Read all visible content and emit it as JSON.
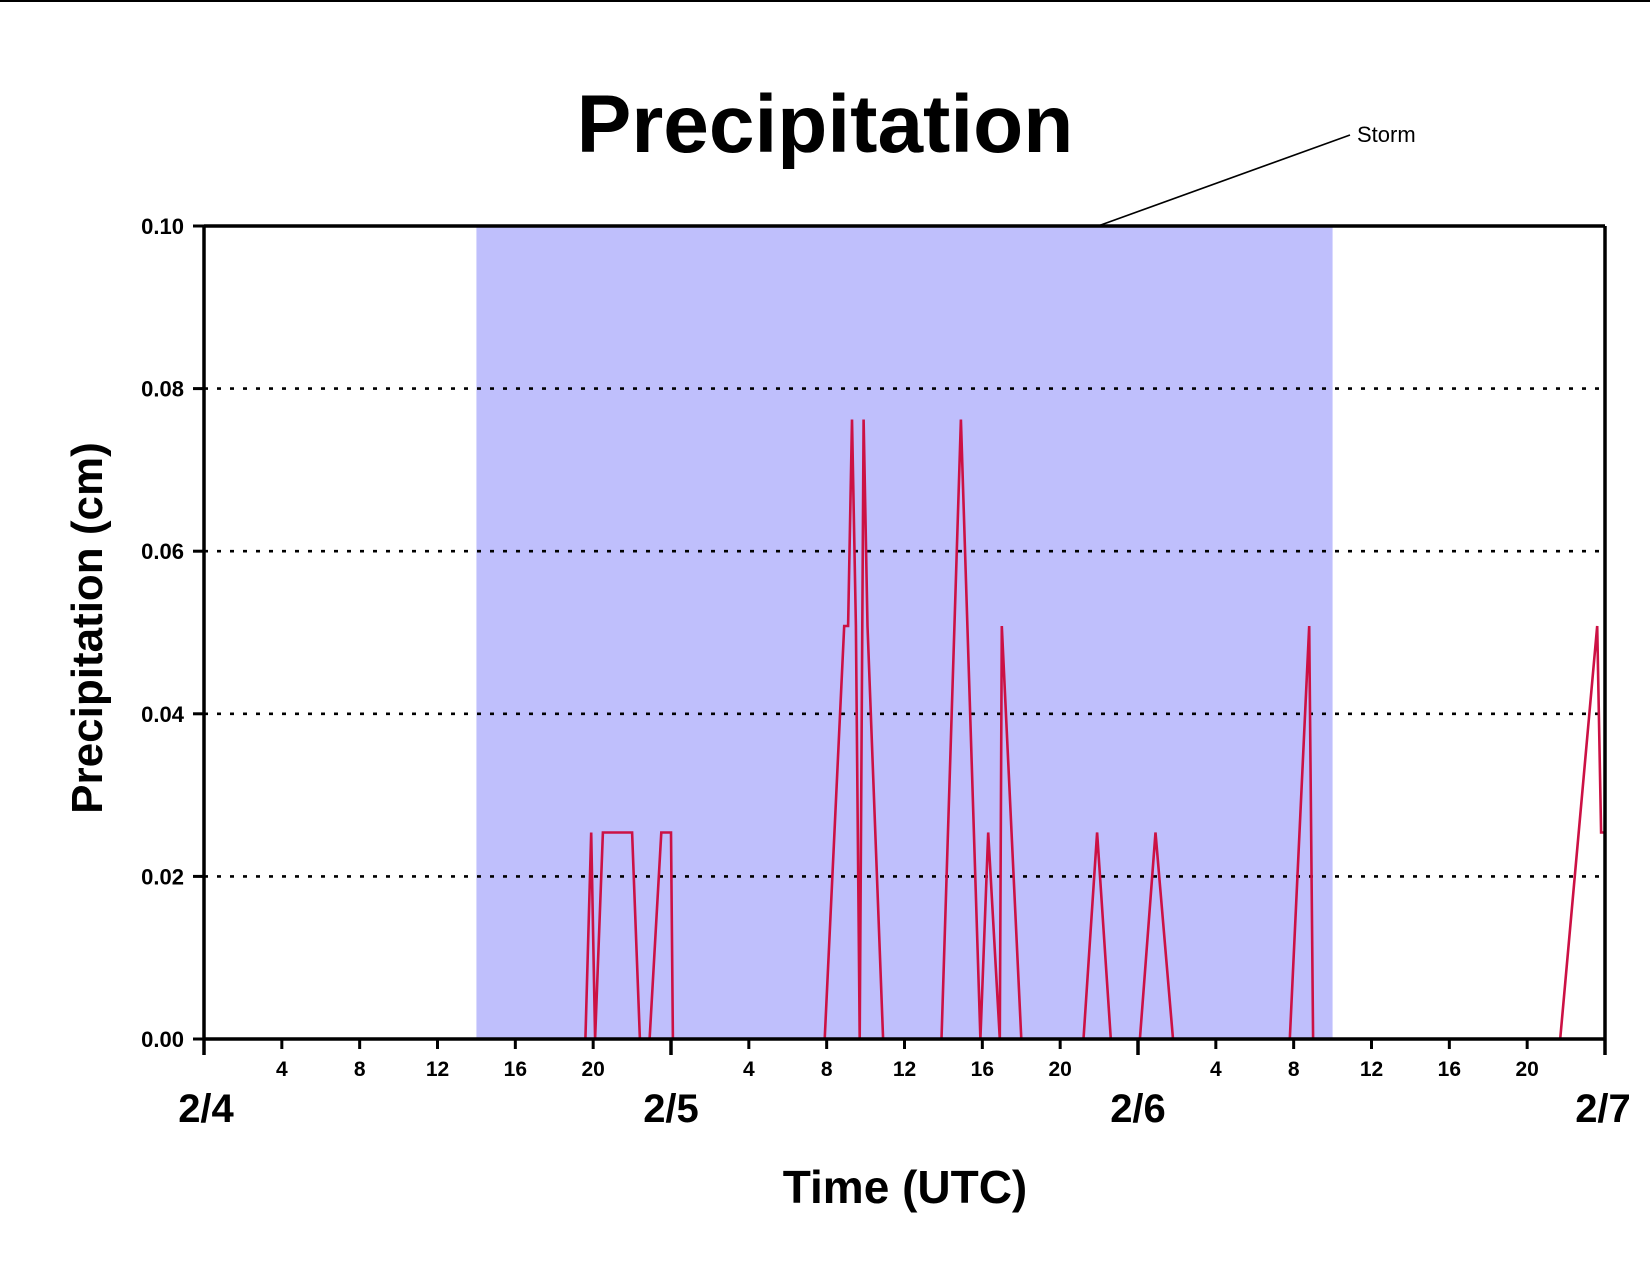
{
  "chart_data": {
    "type": "line",
    "title": "Precipitation",
    "xlabel": "Time (UTC)",
    "ylabel": "Precipitation (cm)",
    "x_unit": "hours",
    "xlim": [
      0,
      72
    ],
    "ylim": [
      0,
      0.1
    ],
    "y_ticks": [
      "0.00",
      "0.02",
      "0.04",
      "0.06",
      "0.08",
      "0.10"
    ],
    "grid": {
      "horizontal_dotted": [
        0.02,
        0.04,
        0.06,
        0.08
      ]
    },
    "hour_ticks": [
      {
        "x": 4,
        "label": "4"
      },
      {
        "x": 8,
        "label": "8"
      },
      {
        "x": 12,
        "label": "12"
      },
      {
        "x": 16,
        "label": "16"
      },
      {
        "x": 20,
        "label": "20"
      },
      {
        "x": 28,
        "label": "4"
      },
      {
        "x": 32,
        "label": "8"
      },
      {
        "x": 36,
        "label": "12"
      },
      {
        "x": 40,
        "label": "16"
      },
      {
        "x": 44,
        "label": "20"
      },
      {
        "x": 52,
        "label": "4"
      },
      {
        "x": 56,
        "label": "8"
      },
      {
        "x": 60,
        "label": "12"
      },
      {
        "x": 64,
        "label": "16"
      },
      {
        "x": 68,
        "label": "20"
      }
    ],
    "day_ticks": [
      {
        "x": 0,
        "label": "2/4"
      },
      {
        "x": 24,
        "label": "2/5"
      },
      {
        "x": 48,
        "label": "2/6"
      },
      {
        "x": 72,
        "label": "2/7"
      }
    ],
    "storm_span": {
      "start": 14,
      "end": 58,
      "label": "Storm",
      "color": "#bfbffc"
    },
    "series": [
      {
        "color": "#cc1144",
        "points": [
          [
            0,
            0
          ],
          [
            19.6,
            0
          ],
          [
            19.9,
            0.0254
          ],
          [
            20.1,
            0
          ],
          [
            20.5,
            0.0254
          ],
          [
            22.0,
            0.0254
          ],
          [
            22.4,
            0
          ],
          [
            22.9,
            0
          ],
          [
            23.5,
            0.0254
          ],
          [
            24.0,
            0.0254
          ],
          [
            24.1,
            0
          ],
          [
            31.9,
            0
          ],
          [
            32.9,
            0.0508
          ],
          [
            33.1,
            0.0508
          ],
          [
            33.3,
            0.0762
          ],
          [
            33.5,
            0.0508
          ],
          [
            33.7,
            0
          ],
          [
            33.9,
            0.0762
          ],
          [
            34.1,
            0.0508
          ],
          [
            34.9,
            0
          ],
          [
            37.9,
            0
          ],
          [
            38.9,
            0.0762
          ],
          [
            39.9,
            0
          ],
          [
            40.3,
            0.0254
          ],
          [
            40.9,
            0
          ],
          [
            41.0,
            0.0508
          ],
          [
            42.0,
            0
          ],
          [
            45.2,
            0
          ],
          [
            45.9,
            0.0254
          ],
          [
            46.6,
            0
          ],
          [
            48.1,
            0
          ],
          [
            48.9,
            0.0254
          ],
          [
            49.8,
            0
          ],
          [
            55.8,
            0
          ],
          [
            56.8,
            0.0508
          ],
          [
            57.0,
            0
          ],
          [
            69.7,
            0
          ],
          [
            71.6,
            0.0508
          ],
          [
            71.8,
            0.0254
          ],
          [
            72.0,
            0.0254
          ],
          [
            72.0,
            0
          ]
        ]
      }
    ]
  }
}
